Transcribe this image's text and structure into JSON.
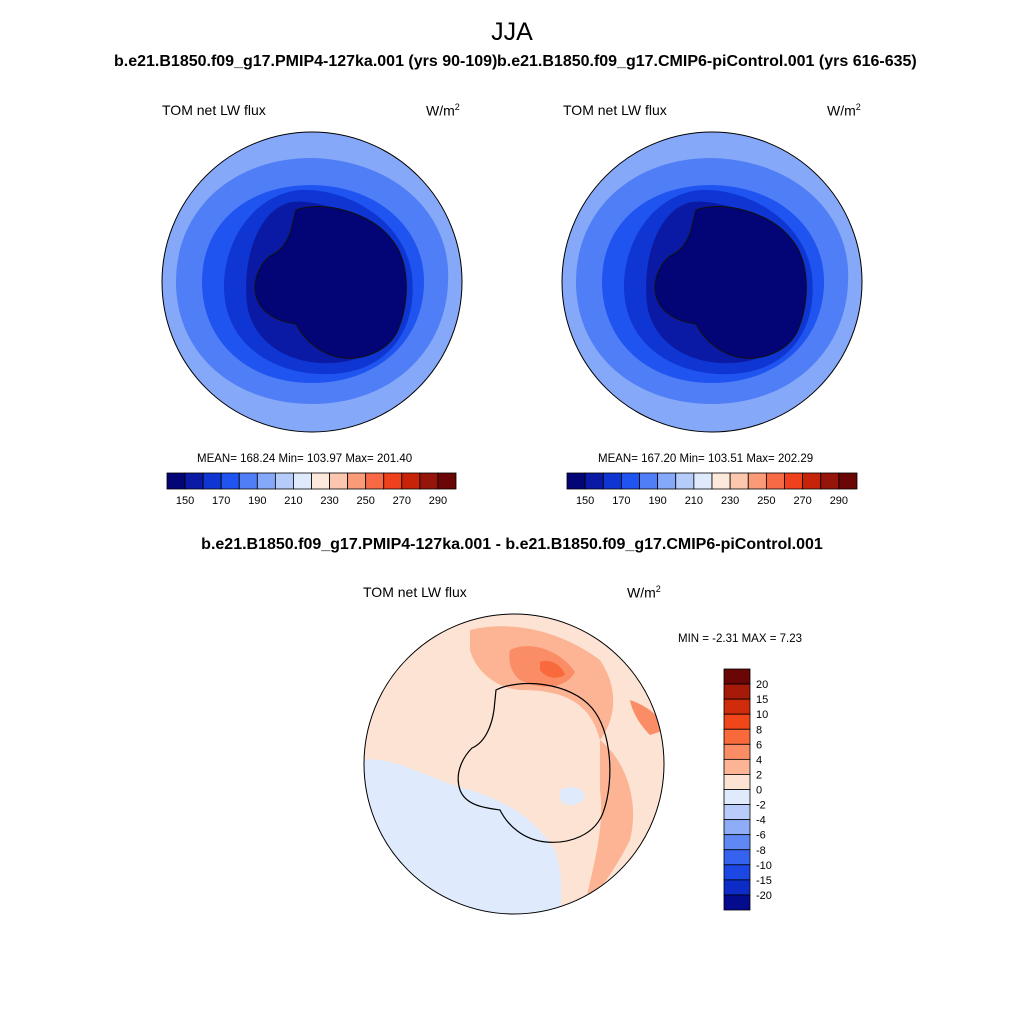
{
  "figure": {
    "season": "JJA",
    "panels": [
      {
        "case": "b.e21.B1850.f09_g17.PMIP4-127ka.001 (yrs 90-109)",
        "variable": "TOM net LW flux",
        "units": "W/m",
        "units_sup": "2",
        "stats": "MEAN= 168.24  Min= 103.97  Max= 201.40"
      },
      {
        "case": "b.e21.B1850.f09_g17.CMIP6-piControl.001 (yrs 616-635)",
        "variable": "TOM net LW flux",
        "units": "W/m",
        "units_sup": "2",
        "stats": "MEAN= 167.20  Min= 103.51  Max= 202.29"
      }
    ],
    "difference": {
      "title": "b.e21.B1850.f09_g17.PMIP4-127ka.001 - b.e21.B1850.f09_g17.CMIP6-piControl.001",
      "variable": "TOM net LW flux",
      "units": "W/m",
      "units_sup": "2",
      "stats": "MIN =  -2.31 MAX =   7.23"
    },
    "colorbar_abs": {
      "colors": [
        "#030475",
        "#0a1aa4",
        "#0f36d2",
        "#1f54f0",
        "#4f7ef6",
        "#85a8f8",
        "#b5cbfa",
        "#e0eafd",
        "#fde8dc",
        "#fcc7ae",
        "#fb9a76",
        "#f86a45",
        "#f0411d",
        "#c72309",
        "#95150a",
        "#6b0606"
      ],
      "tick_labels": [
        "150",
        "170",
        "190",
        "210",
        "230",
        "250",
        "270",
        "290"
      ]
    },
    "colorbar_diff": {
      "colors": [
        "#6b0606",
        "#a51a08",
        "#d02b0b",
        "#f0461a",
        "#f8693c",
        "#fa8d66",
        "#fcb494",
        "#fde3d3",
        "#dfeafd",
        "#b8cbfa",
        "#8fadf7",
        "#5f88f4",
        "#3563ef",
        "#1c47e4",
        "#0c2bc7",
        "#040b8c"
      ],
      "tick_labels": [
        "20",
        "15",
        "10",
        "8",
        "6",
        "4",
        "2",
        "0",
        "-2",
        "-4",
        "-6",
        "-8",
        "-10",
        "-15",
        "-20"
      ]
    }
  }
}
